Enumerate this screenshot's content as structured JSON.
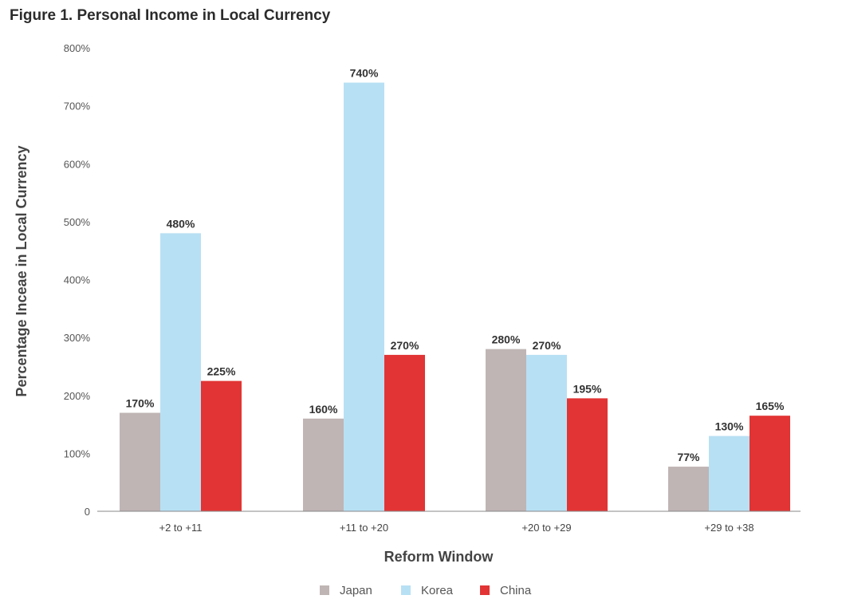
{
  "chart_data": {
    "type": "bar",
    "title": "Figure 1. Personal Income in Local Currency",
    "xlabel": "Reform Window",
    "ylabel": "Percentage Inceae in Local Currency",
    "categories": [
      "+2 to +11",
      "+11 to +20",
      "+20 to +29",
      "+29 to +38"
    ],
    "series": [
      {
        "name": "Japan",
        "color": "#bfb5b4",
        "values": [
          170,
          160,
          280,
          77
        ],
        "labels": [
          "170%",
          "160%",
          "280%",
          "77%"
        ]
      },
      {
        "name": "Korea",
        "color": "#b8e0f4",
        "values": [
          480,
          740,
          270,
          130
        ],
        "labels": [
          "480%",
          "740%",
          "270%",
          "130%"
        ]
      },
      {
        "name": "China",
        "color": "#e23434",
        "values": [
          225,
          270,
          195,
          165
        ],
        "labels": [
          "225%",
          "270%",
          "195%",
          "165%"
        ]
      }
    ],
    "ylim": [
      0,
      800
    ],
    "yticks": [
      0,
      100,
      200,
      300,
      400,
      500,
      600,
      700,
      800
    ],
    "ytick_labels": [
      "0",
      "100%",
      "200%",
      "300%",
      "400%",
      "500%",
      "600%",
      "700%",
      "800%"
    ],
    "grid": false,
    "legend_position": "bottom-center"
  }
}
